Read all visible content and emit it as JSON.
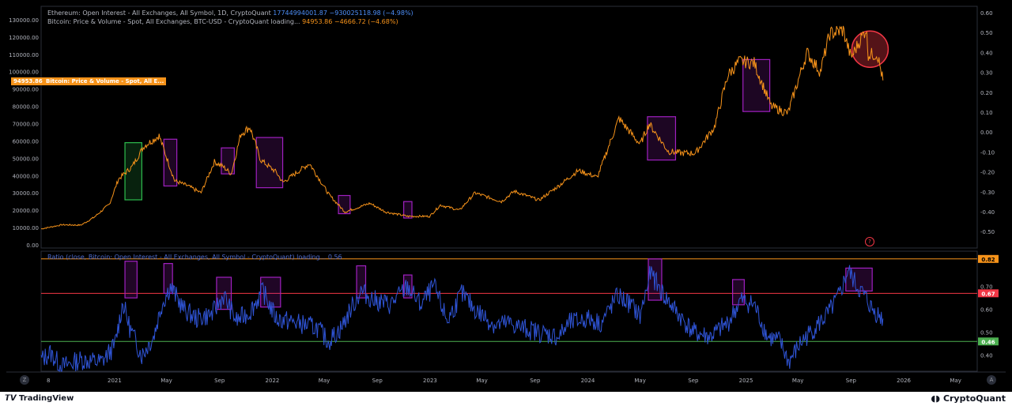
{
  "legend": {
    "eth_title": "Ethereum: Open Interest - All Exchanges, All Symbol, 1D, CryptoQuant",
    "eth_value": "17744994001.87",
    "eth_change": "−930025118.98 (−4.98%)",
    "btc_title": "Bitcoin: Price & Volume - Spot, All Exchanges, BTC-USD - CryptoQuant loading...",
    "btc_value": "94953.86",
    "btc_change": "−4666.72 (−4.68%)",
    "ratio_title": "Ratio (close, Bitcoin: Open Interest - All Exchanges, All Symbol - CryptoQuant) loading...",
    "ratio_value": "0.56"
  },
  "price_tag": {
    "value": "94953.86",
    "label": "Bitcoin: Price & Volume - Spot, All E..."
  },
  "footer": {
    "tradingview": "TradingView",
    "cryptoquant": "CryptoQuant",
    "z_button": "Z",
    "a_button": "A",
    "warn_icon": "?"
  },
  "colors": {
    "btc": "#f7931a",
    "ratio": "#2f54d6",
    "box_purple": "#a020c0",
    "box_green": "#2ebd4e",
    "line_red": "#f23645",
    "line_orange": "#f7931a",
    "line_green": "#4caf50"
  },
  "chart_data": [
    {
      "type": "line",
      "series": [
        {
          "name": "Bitcoin: Price & Volume - Spot, All Exchanges, BTC-USD",
          "points": [
            [
              "2020-07-15",
              9200
            ],
            [
              "2020-09-01",
              11600
            ],
            [
              "2020-10-15",
              11400
            ],
            [
              "2020-11-15",
              16000
            ],
            [
              "2020-12-20",
              23500
            ],
            [
              "2021-01-10",
              38000
            ],
            [
              "2021-02-10",
              45000
            ],
            [
              "2021-03-10",
              57000
            ],
            [
              "2021-04-14",
              63000
            ],
            [
              "2021-05-20",
              37000
            ],
            [
              "2021-06-20",
              34000
            ],
            [
              "2021-07-20",
              30000
            ],
            [
              "2021-08-20",
              48000
            ],
            [
              "2021-09-10",
              45000
            ],
            [
              "2021-09-28",
              41000
            ],
            [
              "2021-10-20",
              64000
            ],
            [
              "2021-11-10",
              68000
            ],
            [
              "2021-12-05",
              49000
            ],
            [
              "2022-01-10",
              42000
            ],
            [
              "2022-01-25",
              36000
            ],
            [
              "2022-03-28",
              47000
            ],
            [
              "2022-05-12",
              29000
            ],
            [
              "2022-06-18",
              19000
            ],
            [
              "2022-08-15",
              24000
            ],
            [
              "2022-09-20",
              19000
            ],
            [
              "2022-11-10",
              16500
            ],
            [
              "2022-12-31",
              16500
            ],
            [
              "2023-01-25",
              23000
            ],
            [
              "2023-03-10",
              20000
            ],
            [
              "2023-04-15",
              30000
            ],
            [
              "2023-06-15",
              25000
            ],
            [
              "2023-07-15",
              31000
            ],
            [
              "2023-09-10",
              25800
            ],
            [
              "2023-10-25",
              34000
            ],
            [
              "2023-12-10",
              43000
            ],
            [
              "2024-01-23",
              39000
            ],
            [
              "2024-03-13",
              73000
            ],
            [
              "2024-05-01",
              58000
            ],
            [
              "2024-05-22",
              70000
            ],
            [
              "2024-07-05",
              54000
            ],
            [
              "2024-08-05",
              53000
            ],
            [
              "2024-09-06",
              53000
            ],
            [
              "2024-10-20",
              68000
            ],
            [
              "2024-11-20",
              98000
            ],
            [
              "2024-12-17",
              106000
            ],
            [
              "2025-01-20",
              105000
            ],
            [
              "2025-02-28",
              80000
            ],
            [
              "2025-04-08",
              76000
            ],
            [
              "2025-05-22",
              111000
            ],
            [
              "2025-06-22",
              100000
            ],
            [
              "2025-07-14",
              122000
            ],
            [
              "2025-08-14",
              124000
            ],
            [
              "2025-09-01",
              108000
            ],
            [
              "2025-10-06",
              125000
            ],
            [
              "2025-10-11",
              110000
            ],
            [
              "2025-11-01",
              110000
            ],
            [
              "2025-11-14",
              94953.86
            ]
          ]
        }
      ],
      "ylabel": "",
      "ylim": [
        0,
        135000
      ],
      "yticks": [
        "0.00",
        "10000.00",
        "20000.00",
        "30000.00",
        "40000.00",
        "50000.00",
        "60000.00",
        "70000.00",
        "80000.00",
        "90000.00",
        "100000.00",
        "110000.00",
        "120000.00",
        "130000.00"
      ],
      "yticks_right": [
        "0.60",
        "0.50",
        "0.40",
        "0.30",
        "0.20",
        "0.10",
        "0.00",
        "-0.10",
        "-0.20",
        "-0.30",
        "-0.40",
        "-0.50"
      ],
      "annotations": [
        {
          "kind": "box",
          "color": "green",
          "from": "2021-01-25",
          "to": "2021-03-05",
          "ylow": 26000,
          "yhigh": 59000
        },
        {
          "kind": "box",
          "color": "purple",
          "from": "2021-04-25",
          "to": "2021-05-25",
          "ylow": 34000,
          "yhigh": 61000
        },
        {
          "kind": "box",
          "color": "purple",
          "from": "2021-09-05",
          "to": "2021-10-05",
          "ylow": 41000,
          "yhigh": 56000
        },
        {
          "kind": "box",
          "color": "purple",
          "from": "2021-11-25",
          "to": "2022-01-25",
          "ylow": 33000,
          "yhigh": 62000
        },
        {
          "kind": "box",
          "color": "purple",
          "from": "2022-06-03",
          "to": "2022-06-30",
          "ylow": 18000,
          "yhigh": 28500
        },
        {
          "kind": "box",
          "color": "purple",
          "from": "2022-11-01",
          "to": "2022-11-20",
          "ylow": 15500,
          "yhigh": 25000
        },
        {
          "kind": "box",
          "color": "purple",
          "from": "2024-05-18",
          "to": "2024-07-22",
          "ylow": 49000,
          "yhigh": 74000
        },
        {
          "kind": "box",
          "color": "purple",
          "from": "2024-12-25",
          "to": "2025-02-25",
          "ylow": 77000,
          "yhigh": 107000
        },
        {
          "kind": "circle",
          "color": "red",
          "at": "2025-10-15",
          "y": 113000
        }
      ]
    },
    {
      "type": "line",
      "series": [
        {
          "name": "Ratio",
          "points": [
            [
              "2020-07-15",
              0.38
            ],
            [
              "2020-08-05",
              0.41
            ],
            [
              "2020-09-01",
              0.35
            ],
            [
              "2020-10-15",
              0.38
            ],
            [
              "2020-12-01",
              0.37
            ],
            [
              "2021-01-01",
              0.44
            ],
            [
              "2021-01-20",
              0.63
            ],
            [
              "2021-02-05",
              0.52
            ],
            [
              "2021-03-05",
              0.4
            ],
            [
              "2021-04-01",
              0.48
            ],
            [
              "2021-04-20",
              0.62
            ],
            [
              "2021-05-10",
              0.7
            ],
            [
              "2021-06-10",
              0.6
            ],
            [
              "2021-07-10",
              0.56
            ],
            [
              "2021-08-15",
              0.58
            ],
            [
              "2021-09-10",
              0.66
            ],
            [
              "2021-10-10",
              0.55
            ],
            [
              "2021-11-10",
              0.59
            ],
            [
              "2021-12-10",
              0.68
            ],
            [
              "2022-01-10",
              0.56
            ],
            [
              "2022-03-01",
              0.54
            ],
            [
              "2022-04-15",
              0.52
            ],
            [
              "2022-05-10",
              0.46
            ],
            [
              "2022-06-10",
              0.52
            ],
            [
              "2022-07-01",
              0.6
            ],
            [
              "2022-07-25",
              0.68
            ],
            [
              "2022-08-25",
              0.64
            ],
            [
              "2022-10-01",
              0.62
            ],
            [
              "2022-11-10",
              0.7
            ],
            [
              "2022-12-10",
              0.62
            ],
            [
              "2023-01-10",
              0.7
            ],
            [
              "2023-02-10",
              0.55
            ],
            [
              "2023-03-15",
              0.67
            ],
            [
              "2023-04-15",
              0.6
            ],
            [
              "2023-06-01",
              0.53
            ],
            [
              "2023-07-01",
              0.54
            ],
            [
              "2023-08-01",
              0.52
            ],
            [
              "2023-09-10",
              0.5
            ],
            [
              "2023-10-25",
              0.48
            ],
            [
              "2023-11-20",
              0.54
            ],
            [
              "2024-01-01",
              0.56
            ],
            [
              "2024-02-01",
              0.54
            ],
            [
              "2024-03-10",
              0.66
            ],
            [
              "2024-04-10",
              0.62
            ],
            [
              "2024-05-01",
              0.57
            ],
            [
              "2024-05-25",
              0.76
            ],
            [
              "2024-06-25",
              0.66
            ],
            [
              "2024-08-01",
              0.57
            ],
            [
              "2024-09-01",
              0.5
            ],
            [
              "2024-10-10",
              0.48
            ],
            [
              "2024-11-20",
              0.54
            ],
            [
              "2024-12-20",
              0.64
            ],
            [
              "2025-01-20",
              0.62
            ],
            [
              "2025-02-20",
              0.48
            ],
            [
              "2025-03-20",
              0.46
            ],
            [
              "2025-04-10",
              0.37
            ],
            [
              "2025-05-10",
              0.46
            ],
            [
              "2025-06-10",
              0.52
            ],
            [
              "2025-07-10",
              0.58
            ],
            [
              "2025-08-05",
              0.66
            ],
            [
              "2025-08-25",
              0.77
            ],
            [
              "2025-09-15",
              0.7
            ],
            [
              "2025-10-05",
              0.65
            ],
            [
              "2025-10-20",
              0.6
            ],
            [
              "2025-11-14",
              0.56
            ]
          ]
        }
      ],
      "ylim": [
        0.33,
        0.84
      ],
      "yticks": [
        "0.40",
        "0.50",
        "0.60",
        "0.70"
      ],
      "hlines": [
        {
          "value": 0.82,
          "label": "0.82",
          "color": "orange"
        },
        {
          "value": 0.67,
          "label": "0.67",
          "color": "red"
        },
        {
          "value": 0.46,
          "label": "0.46",
          "color": "green"
        }
      ],
      "annotations": [
        {
          "kind": "box",
          "color": "purple",
          "from": "2021-01-25",
          "to": "2021-02-22",
          "ylow": 0.65,
          "yhigh": 0.81
        },
        {
          "kind": "box",
          "color": "purple",
          "from": "2021-04-25",
          "to": "2021-05-15",
          "ylow": 0.67,
          "yhigh": 0.8
        },
        {
          "kind": "box",
          "color": "purple",
          "from": "2021-08-25",
          "to": "2021-09-28",
          "ylow": 0.6,
          "yhigh": 0.74
        },
        {
          "kind": "box",
          "color": "purple",
          "from": "2021-12-05",
          "to": "2022-01-20",
          "ylow": 0.61,
          "yhigh": 0.74
        },
        {
          "kind": "box",
          "color": "purple",
          "from": "2022-07-15",
          "to": "2022-08-05",
          "ylow": 0.65,
          "yhigh": 0.79
        },
        {
          "kind": "box",
          "color": "purple",
          "from": "2022-11-01",
          "to": "2022-11-20",
          "ylow": 0.65,
          "yhigh": 0.75
        },
        {
          "kind": "box",
          "color": "purple",
          "from": "2024-05-20",
          "to": "2024-06-20",
          "ylow": 0.64,
          "yhigh": 0.82
        },
        {
          "kind": "box",
          "color": "purple",
          "from": "2024-12-01",
          "to": "2024-12-28",
          "ylow": 0.62,
          "yhigh": 0.73
        },
        {
          "kind": "box",
          "color": "purple",
          "from": "2025-08-20",
          "to": "2025-10-20",
          "ylow": 0.68,
          "yhigh": 0.78
        }
      ]
    }
  ],
  "x_axis": {
    "ticks": [
      {
        "date": "2020-08-01",
        "label": "8"
      },
      {
        "date": "2021-01-01",
        "label": "2021"
      },
      {
        "date": "2021-05-01",
        "label": "May"
      },
      {
        "date": "2021-09-01",
        "label": "Sep"
      },
      {
        "date": "2022-01-01",
        "label": "2022"
      },
      {
        "date": "2022-05-01",
        "label": "May"
      },
      {
        "date": "2022-09-01",
        "label": "Sep"
      },
      {
        "date": "2023-01-01",
        "label": "2023"
      },
      {
        "date": "2023-05-01",
        "label": "May"
      },
      {
        "date": "2023-09-01",
        "label": "Sep"
      },
      {
        "date": "2024-01-01",
        "label": "2024"
      },
      {
        "date": "2024-05-01",
        "label": "May"
      },
      {
        "date": "2024-09-01",
        "label": "Sep"
      },
      {
        "date": "2025-01-01",
        "label": "2025"
      },
      {
        "date": "2025-05-01",
        "label": "May"
      },
      {
        "date": "2025-09-01",
        "label": "Sep"
      },
      {
        "date": "2026-01-01",
        "label": "2026"
      },
      {
        "date": "2026-05-01",
        "label": "May"
      }
    ]
  }
}
